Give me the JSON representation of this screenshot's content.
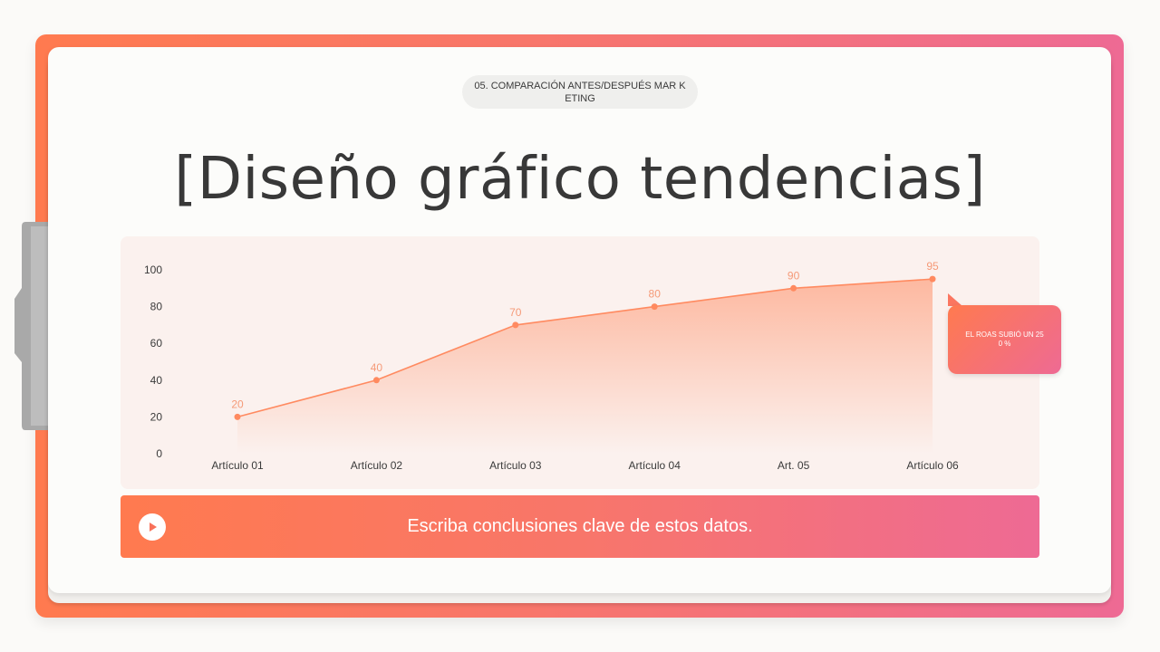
{
  "section_label": "05. COMPARACIÓN ANTES/DESPUÉS MAR KETING",
  "title": "[Diseño gráfico tendencias]",
  "callout": {
    "text": "EL ROAS SUBIÓ UN 25 0 %"
  },
  "banner": {
    "text": "Escriba conclusiones clave de estos datos.",
    "icon": "play-icon"
  },
  "colors": {
    "accent_start": "#ff7a4f",
    "accent_end": "#ee6a94",
    "line": "#ff8a60",
    "title": "#383838"
  },
  "chart_data": {
    "type": "area",
    "categories": [
      "Artículo 01",
      "Artículo 02",
      "Artículo 03",
      "Artículo 04",
      "Art. 05",
      "Artículo 06"
    ],
    "series": [
      {
        "values": [
          20,
          40,
          70,
          80,
          90,
          95
        ]
      }
    ],
    "y_ticks": [
      "0",
      "20",
      "40",
      "60",
      "80",
      "100"
    ],
    "ylim": [
      0,
      100
    ],
    "title": "",
    "xlabel": "",
    "ylabel": "",
    "grid": false,
    "data_labels": true
  }
}
